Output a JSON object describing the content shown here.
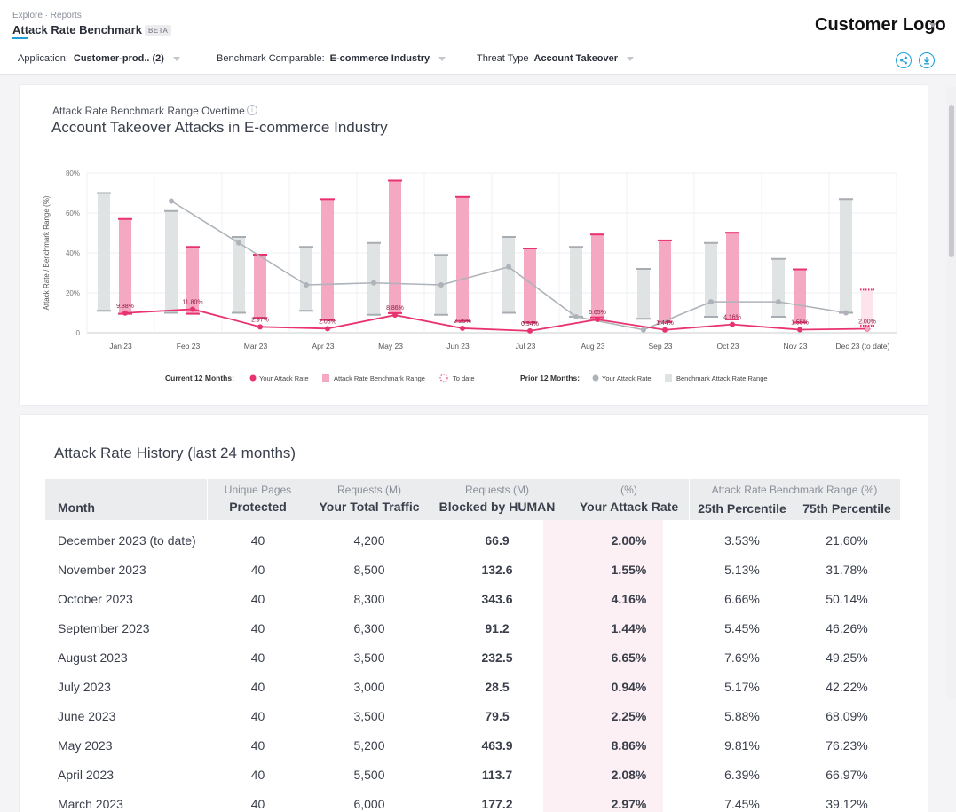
{
  "header": {
    "breadcrumb": "Explore · Reports",
    "title": "Attack Rate Benchmark",
    "badge": "BETA",
    "logo": "Customer Logo"
  },
  "filters": {
    "application_label": "Application:",
    "application_value": "Customer-prod.. (2)",
    "benchmark_label": "Benchmark Comparable:",
    "benchmark_value": "E-commerce Industry",
    "threat_label": "Threat Type",
    "threat_value": "Account Takeover"
  },
  "icons": {
    "share": "share-icon",
    "download": "download-icon",
    "info": "info-icon"
  },
  "colors": {
    "accent": "#1ea0d9",
    "pink": "#e8336e",
    "pink_bar": "#f5a8c2",
    "gray": "#aeb3b9",
    "gray_bar": "#dfe3e3"
  },
  "chart_section": {
    "subtitle": "Attack Rate Benchmark Range Overtime",
    "title": "Account Takeover Attacks in E-commerce Industry"
  },
  "chart_data": {
    "type": "bar",
    "ylabel": "Attack Rate / Benchmark Range (%)",
    "ylim": [
      0,
      80
    ],
    "yticks": [
      "0",
      "20%",
      "40%",
      "60%",
      "80%"
    ],
    "categories": [
      "Jan 23",
      "Feb 23",
      "Mar 23",
      "Apr 23",
      "May 23",
      "Jun 23",
      "Jul 23",
      "Aug 23",
      "Sep 23",
      "Oct 23",
      "Nov 23",
      "Dec 23 (to date)"
    ],
    "series": [
      {
        "name": "Your Attack Rate",
        "period": "Current 12 Months",
        "values": [
          9.88,
          11.8,
          2.97,
          2.08,
          8.86,
          2.25,
          0.94,
          6.65,
          1.44,
          4.16,
          1.55,
          2.0
        ],
        "labels": [
          "9.88%",
          "11.80%",
          "2.97%",
          "2.08%",
          "8.86%",
          "2.25%",
          "0.94%",
          "6.65%",
          "1.44%",
          "4.16%",
          "1.55%",
          "2.00%"
        ]
      },
      {
        "name": "Attack Rate Benchmark Range",
        "period": "Current 12 Months",
        "low": [
          9.5,
          9.5,
          7.45,
          6.39,
          9.81,
          5.88,
          5.17,
          7.69,
          5.45,
          6.66,
          5.13,
          3.53
        ],
        "high": [
          57,
          43,
          39.12,
          66.97,
          76.23,
          68.09,
          42.22,
          49.25,
          46.26,
          50.14,
          31.78,
          21.6
        ]
      },
      {
        "name": "Your Attack Rate",
        "period": "Prior 12 Months",
        "values": [
          null,
          66,
          45,
          24,
          25,
          24,
          33,
          8,
          1.5,
          15.5,
          15.5,
          10
        ]
      },
      {
        "name": "Benchmark Attack Rate Range",
        "period": "Prior 12 Months",
        "low": [
          11,
          10,
          10,
          11,
          9,
          9,
          10,
          8,
          7,
          8,
          8,
          10
        ],
        "high": [
          70,
          61,
          48,
          43,
          45,
          39,
          48,
          43,
          32,
          45,
          37,
          67
        ]
      }
    ],
    "legend": {
      "current_label": "Current 12 Months:",
      "current_items": [
        "Your Attack Rate",
        "Attack Rate Benchmark Range",
        "To date"
      ],
      "prior_label": "Prior 12 Months:",
      "prior_items": [
        "Your Attack Rate",
        "Benchmark Attack Rate Range"
      ],
      "placement": "bottom"
    }
  },
  "table": {
    "title": "Attack Rate History (last 24 months)",
    "headers": {
      "month": "Month",
      "pages_top": "Unique Pages",
      "pages_bot": "Protected",
      "traffic_top": "Requests (M)",
      "traffic_bot": "Your Total Traffic",
      "blocked_top": "Requests (M)",
      "blocked_bot": "Blocked by HUMAN",
      "rate_top": "(%)",
      "rate_bot": "Your Attack Rate",
      "range_top": "Attack Rate Benchmark Range (%)",
      "p25": "25th Percentile",
      "p75": "75th Percentile"
    },
    "rows": [
      {
        "month": "December 2023 (to date)",
        "pages": "40",
        "traffic": "4,200",
        "blocked": "66.9",
        "rate": "2.00%",
        "p25": "3.53%",
        "p75": "21.60%"
      },
      {
        "month": "November 2023",
        "pages": "40",
        "traffic": "8,500",
        "blocked": "132.6",
        "rate": "1.55%",
        "p25": "5.13%",
        "p75": "31.78%"
      },
      {
        "month": "October 2023",
        "pages": "40",
        "traffic": "8,300",
        "blocked": "343.6",
        "rate": "4.16%",
        "p25": "6.66%",
        "p75": "50.14%"
      },
      {
        "month": "September 2023",
        "pages": "40",
        "traffic": "6,300",
        "blocked": "91.2",
        "rate": "1.44%",
        "p25": "5.45%",
        "p75": "46.26%"
      },
      {
        "month": "August 2023",
        "pages": "40",
        "traffic": "3,500",
        "blocked": "232.5",
        "rate": "6.65%",
        "p25": "7.69%",
        "p75": "49.25%"
      },
      {
        "month": "July 2023",
        "pages": "40",
        "traffic": "3,000",
        "blocked": "28.5",
        "rate": "0.94%",
        "p25": "5.17%",
        "p75": "42.22%"
      },
      {
        "month": "June 2023",
        "pages": "40",
        "traffic": "3,500",
        "blocked": "79.5",
        "rate": "2.25%",
        "p25": "5.88%",
        "p75": "68.09%"
      },
      {
        "month": "May 2023",
        "pages": "40",
        "traffic": "5,200",
        "blocked": "463.9",
        "rate": "8.86%",
        "p25": "9.81%",
        "p75": "76.23%"
      },
      {
        "month": "April 2023",
        "pages": "40",
        "traffic": "5,500",
        "blocked": "113.7",
        "rate": "2.08%",
        "p25": "6.39%",
        "p75": "66.97%"
      },
      {
        "month": "March 2023",
        "pages": "40",
        "traffic": "6,000",
        "blocked": "177.2",
        "rate": "2.97%",
        "p25": "7.45%",
        "p75": "39.12%"
      }
    ]
  }
}
